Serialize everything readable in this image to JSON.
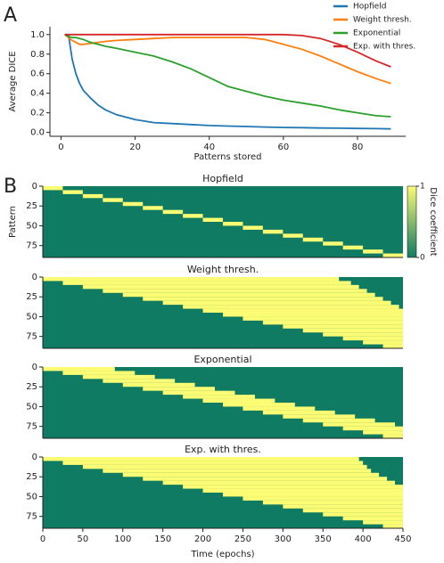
{
  "panel_labels": [
    "A",
    "B"
  ],
  "chart_data": [
    {
      "type": "line",
      "xlabel": "Patterns stored",
      "ylabel": "Average DICE",
      "xlim": [
        -3,
        93
      ],
      "ylim": [
        -0.04,
        1.08
      ],
      "xticks": [
        0,
        20,
        40,
        60,
        80
      ],
      "yticks": [
        0.0,
        0.2,
        0.4,
        0.6,
        0.8,
        1.0
      ],
      "legend": "upper right",
      "x": [
        1,
        2,
        3,
        4,
        5,
        6,
        8,
        10,
        12,
        15,
        20,
        25,
        30,
        35,
        40,
        45,
        50,
        55,
        60,
        65,
        70,
        75,
        80,
        85,
        89
      ],
      "series": [
        {
          "name": "Hopfield",
          "color": "#1f77b4",
          "values": [
            1.0,
            1.0,
            0.75,
            0.6,
            0.5,
            0.43,
            0.35,
            0.28,
            0.23,
            0.18,
            0.13,
            0.1,
            0.09,
            0.08,
            0.07,
            0.065,
            0.06,
            0.055,
            0.05,
            0.048,
            0.045,
            0.043,
            0.04,
            0.038,
            0.036
          ]
        },
        {
          "name": "Weight thresh.",
          "color": "#ff7f0e",
          "values": [
            1.0,
            0.97,
            0.94,
            0.92,
            0.9,
            0.9,
            0.91,
            0.92,
            0.93,
            0.94,
            0.95,
            0.96,
            0.97,
            0.97,
            0.97,
            0.97,
            0.97,
            0.95,
            0.9,
            0.85,
            0.78,
            0.7,
            0.62,
            0.55,
            0.5
          ]
        },
        {
          "name": "Exponential",
          "color": "#2ca02c",
          "values": [
            1.0,
            0.98,
            0.97,
            0.97,
            0.96,
            0.95,
            0.92,
            0.9,
            0.88,
            0.86,
            0.82,
            0.78,
            0.72,
            0.65,
            0.56,
            0.47,
            0.42,
            0.37,
            0.33,
            0.3,
            0.27,
            0.23,
            0.2,
            0.17,
            0.16
          ]
        },
        {
          "name": "Exp. with thres.",
          "color": "#d62728",
          "values": [
            1.0,
            1.0,
            1.0,
            1.0,
            1.0,
            1.0,
            1.0,
            1.0,
            1.0,
            1.0,
            1.0,
            1.0,
            1.0,
            1.0,
            1.0,
            1.0,
            1.0,
            1.0,
            1.0,
            0.99,
            0.96,
            0.9,
            0.82,
            0.73,
            0.67
          ]
        }
      ]
    },
    {
      "type": "heatmap",
      "title": "Hopfield",
      "ylabel": "Pattern",
      "xlim": [
        0,
        450
      ],
      "ylim": [
        0,
        90
      ],
      "yticks": [
        0,
        25,
        50,
        75
      ],
      "low_color": "#0f7b62",
      "high_color": "#fbfb74",
      "colorbar": {
        "label": "Dice coefficient",
        "ticks": [
          0,
          1
        ]
      },
      "row_edges": [
        0,
        5,
        10,
        15,
        20,
        25,
        30,
        35,
        40,
        45,
        50,
        55,
        60,
        65,
        70,
        75,
        80,
        85,
        90
      ],
      "spans": [
        [
          0,
          25
        ],
        [
          25,
          50
        ],
        [
          50,
          75
        ],
        [
          75,
          100
        ],
        [
          100,
          125
        ],
        [
          125,
          150
        ],
        [
          150,
          175
        ],
        [
          175,
          200
        ],
        [
          200,
          225
        ],
        [
          225,
          250
        ],
        [
          250,
          275
        ],
        [
          275,
          300
        ],
        [
          300,
          325
        ],
        [
          325,
          350
        ],
        [
          350,
          375
        ],
        [
          375,
          400
        ],
        [
          400,
          425
        ],
        [
          425,
          450
        ]
      ]
    },
    {
      "type": "heatmap",
      "title": "Weight thresh.",
      "xlim": [
        0,
        450
      ],
      "ylim": [
        0,
        90
      ],
      "yticks": [
        0,
        25,
        50,
        75
      ],
      "low_color": "#0f7b62",
      "high_color": "#fbfb74",
      "row_edges": [
        0,
        5,
        10,
        15,
        20,
        25,
        30,
        35,
        40,
        45,
        50,
        55,
        60,
        65,
        70,
        75,
        80,
        85,
        90
      ],
      "spans": [
        [
          0,
          370
        ],
        [
          25,
          385
        ],
        [
          50,
          395
        ],
        [
          75,
          405
        ],
        [
          100,
          415
        ],
        [
          125,
          425
        ],
        [
          150,
          435
        ],
        [
          175,
          445
        ],
        [
          200,
          450
        ],
        [
          225,
          450
        ],
        [
          250,
          450
        ],
        [
          275,
          450
        ],
        [
          300,
          450
        ],
        [
          325,
          450
        ],
        [
          350,
          450
        ],
        [
          375,
          450
        ],
        [
          400,
          450
        ],
        [
          425,
          450
        ]
      ]
    },
    {
      "type": "heatmap",
      "title": "Exponential",
      "xlim": [
        0,
        450
      ],
      "ylim": [
        0,
        90
      ],
      "yticks": [
        0,
        25,
        50,
        75
      ],
      "low_color": "#0f7b62",
      "high_color": "#fbfb74",
      "row_edges": [
        0,
        5,
        10,
        15,
        20,
        25,
        30,
        35,
        40,
        45,
        50,
        55,
        60,
        65,
        70,
        75,
        80,
        85,
        90
      ],
      "spans": [
        [
          0,
          90
        ],
        [
          25,
          115
        ],
        [
          50,
          140
        ],
        [
          75,
          165
        ],
        [
          100,
          190
        ],
        [
          125,
          215
        ],
        [
          150,
          240
        ],
        [
          175,
          265
        ],
        [
          200,
          290
        ],
        [
          225,
          315
        ],
        [
          250,
          340
        ],
        [
          275,
          365
        ],
        [
          300,
          390
        ],
        [
          325,
          415
        ],
        [
          350,
          440
        ],
        [
          375,
          450
        ],
        [
          400,
          450
        ],
        [
          425,
          450
        ]
      ]
    },
    {
      "type": "heatmap",
      "title": "Exp. with thres.",
      "xlabel": "Time (epochs)",
      "xlim": [
        0,
        450
      ],
      "ylim": [
        0,
        90
      ],
      "yticks": [
        0,
        25,
        50,
        75
      ],
      "xticks": [
        0,
        50,
        100,
        150,
        200,
        250,
        300,
        350,
        400,
        450
      ],
      "low_color": "#0f7b62",
      "high_color": "#fbfb74",
      "row_edges": [
        0,
        5,
        10,
        15,
        20,
        25,
        30,
        35,
        40,
        45,
        50,
        55,
        60,
        65,
        70,
        75,
        80,
        85,
        90
      ],
      "spans": [
        [
          0,
          395
        ],
        [
          25,
          400
        ],
        [
          50,
          405
        ],
        [
          75,
          410
        ],
        [
          100,
          420
        ],
        [
          125,
          430
        ],
        [
          150,
          440
        ],
        [
          175,
          450
        ],
        [
          200,
          450
        ],
        [
          225,
          450
        ],
        [
          250,
          450
        ],
        [
          275,
          450
        ],
        [
          300,
          450
        ],
        [
          325,
          450
        ],
        [
          350,
          450
        ],
        [
          375,
          450
        ],
        [
          400,
          450
        ],
        [
          425,
          450
        ]
      ]
    }
  ]
}
